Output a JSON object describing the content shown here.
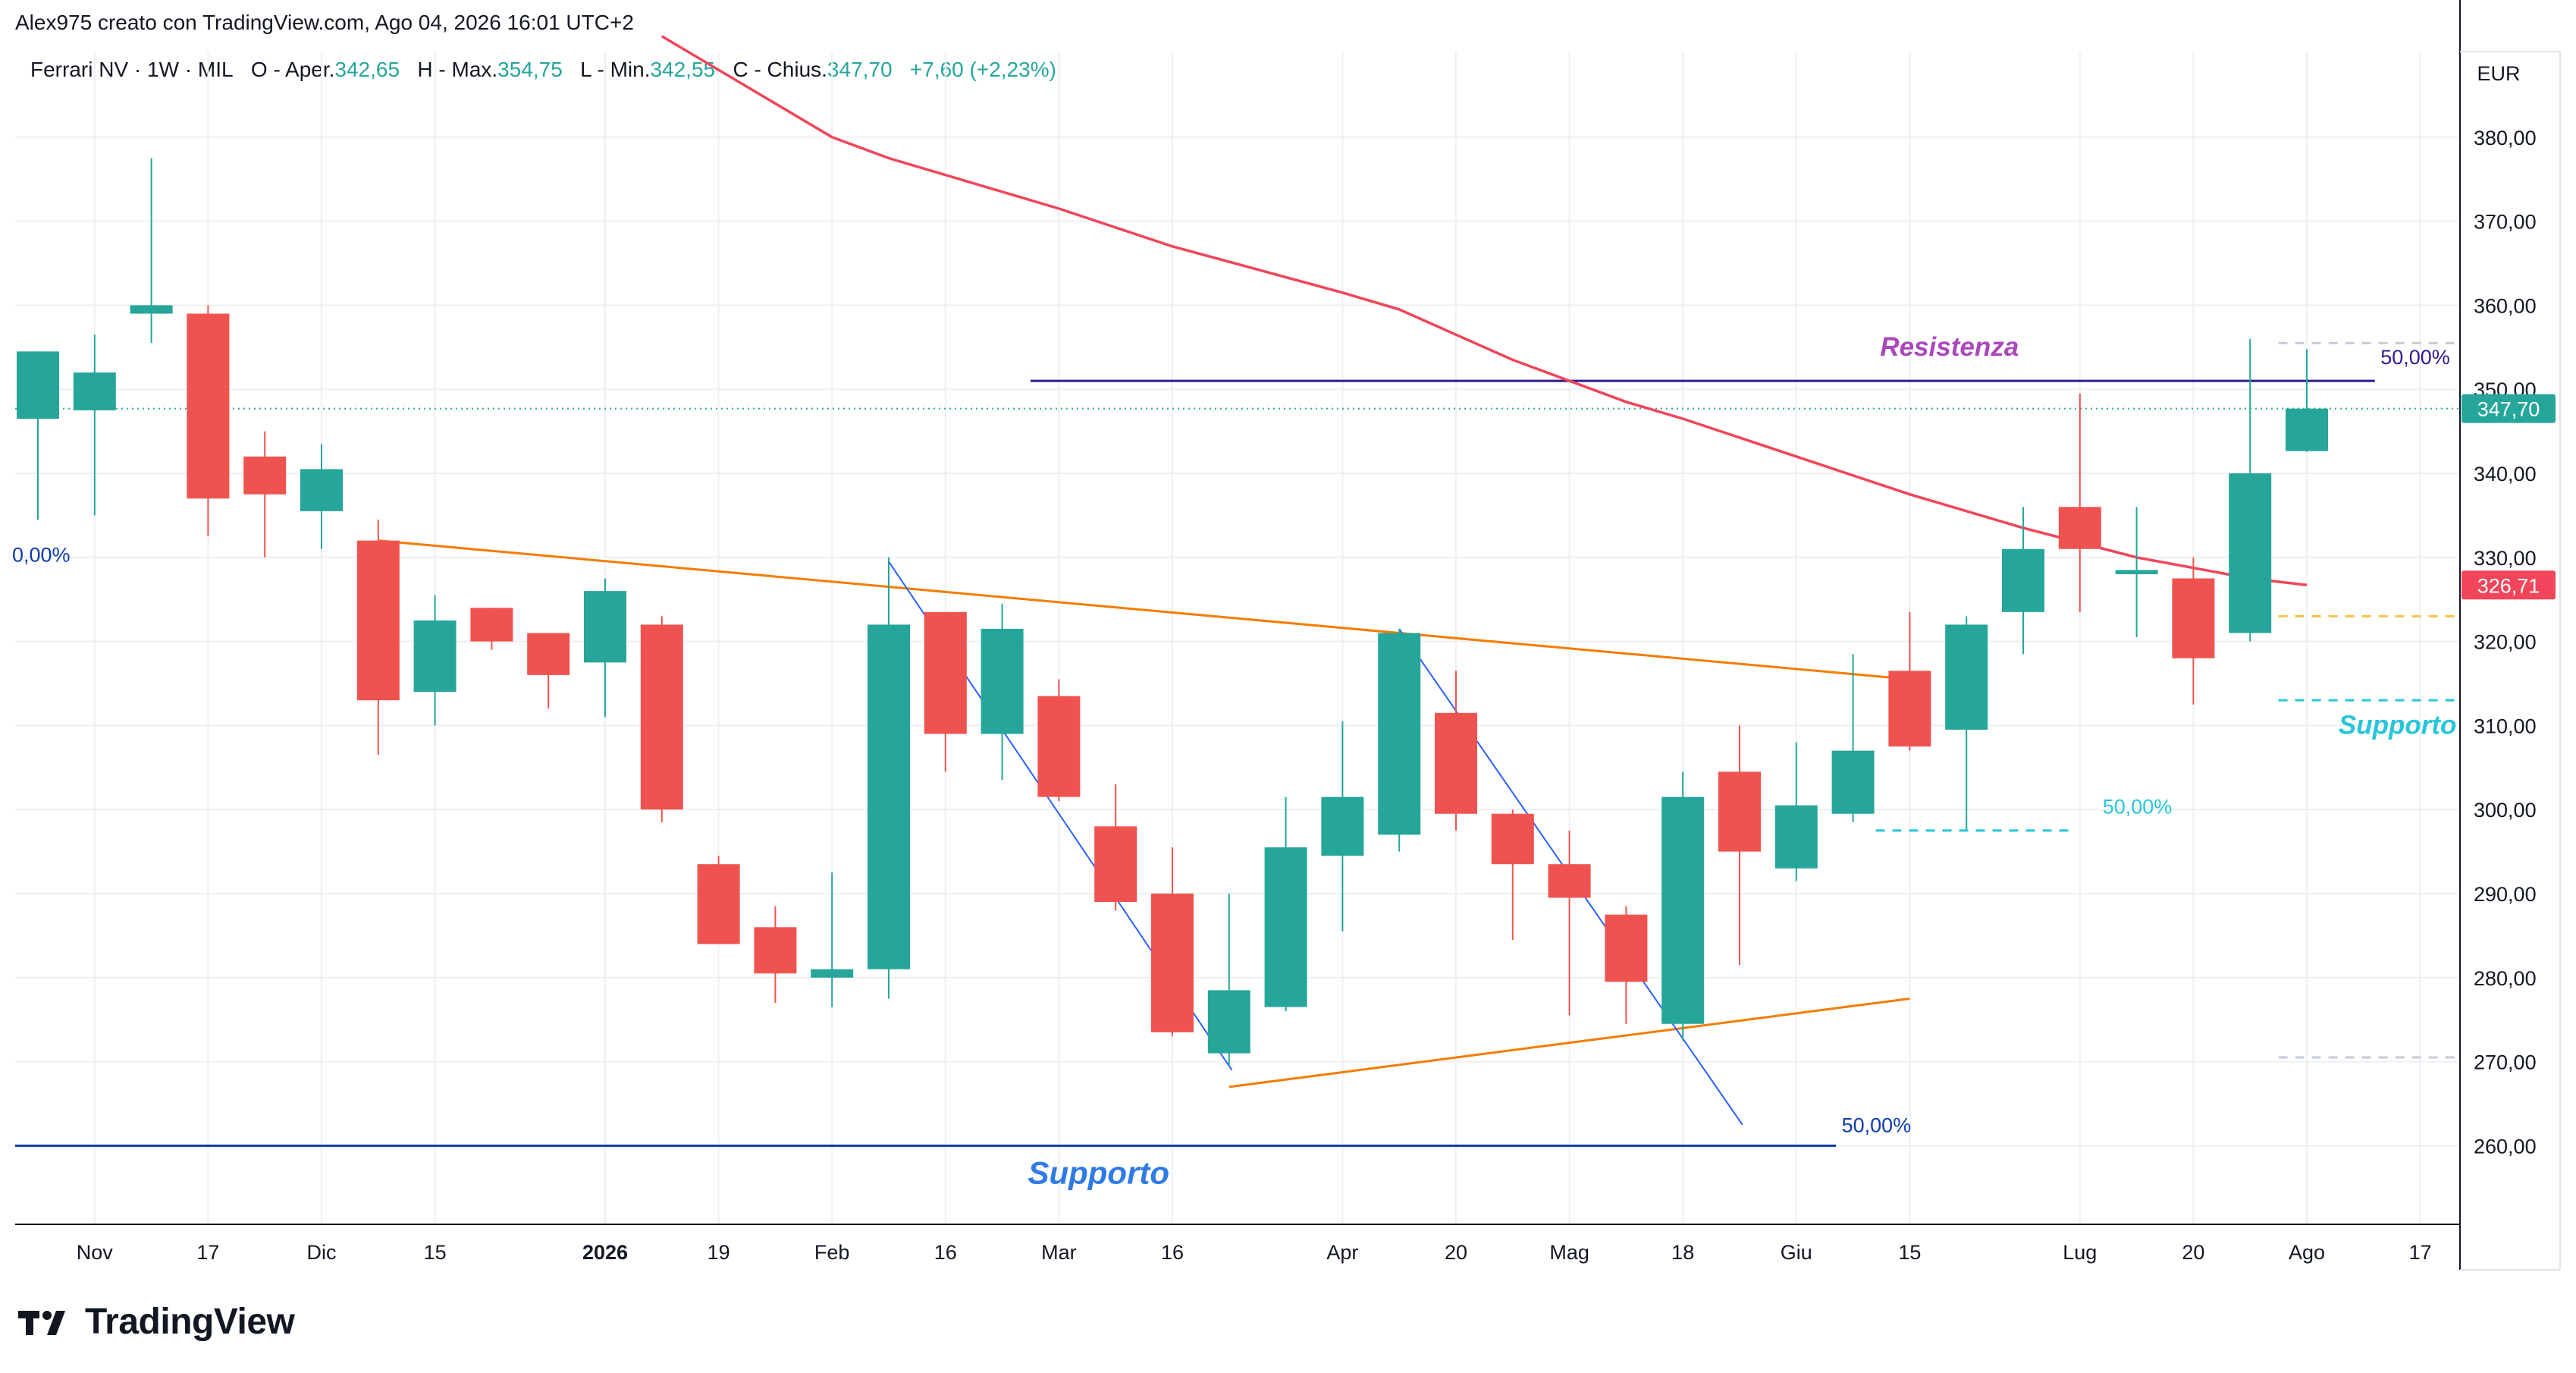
{
  "header": {
    "attribution": "Alex975 creato con TradingView.com, Ago 04, 2026 16:01 UTC+2"
  },
  "legend": {
    "symbol": "Ferrari NV · 1W · MIL",
    "open_label": "O - Aper.",
    "open": "342,65",
    "high_label": "H - Max.",
    "high": "354,75",
    "low_label": "L - Min.",
    "low": "342,55",
    "close_label": "C - Chius.",
    "close": "347,70",
    "change": "+7,60 (+2,23%)"
  },
  "brand": {
    "name": "TradingView",
    "logo": "tradingview-logo-icon"
  },
  "colors": {
    "up": "#26a69a",
    "down": "#ef5350",
    "ma": "#f0455a",
    "trend": "#f57c00",
    "channel": "#2962ff",
    "resistance": "#311b92",
    "support": "#0d3dab",
    "support_label": "#2f7ae5",
    "support2": "#26c6da",
    "grid": "#edf0f3",
    "resistance_label": "#ab47bc",
    "yellow_dash": "#f6c343"
  },
  "chart_data": {
    "type": "candlestick",
    "currency": "EUR",
    "ylim": [
      250,
      390
    ],
    "y_ticks": [
      "260,00",
      "270,00",
      "280,00",
      "290,00",
      "300,00",
      "310,00",
      "320,00",
      "330,00",
      "340,00",
      "350,00",
      "360,00",
      "370,00",
      "380,00"
    ],
    "x_ticks": [
      {
        "label": "Nov",
        "i": 1
      },
      {
        "label": "17",
        "i": 3
      },
      {
        "label": "Dic",
        "i": 5
      },
      {
        "label": "15",
        "i": 7
      },
      {
        "label": "2026",
        "i": 10,
        "bold": true
      },
      {
        "label": "19",
        "i": 12
      },
      {
        "label": "Feb",
        "i": 14
      },
      {
        "label": "16",
        "i": 16
      },
      {
        "label": "Mar",
        "i": 18
      },
      {
        "label": "16",
        "i": 20
      },
      {
        "label": "Apr",
        "i": 23
      },
      {
        "label": "20",
        "i": 25
      },
      {
        "label": "Mag",
        "i": 27
      },
      {
        "label": "18",
        "i": 29
      },
      {
        "label": "Giu",
        "i": 31
      },
      {
        "label": "15",
        "i": 33
      },
      {
        "label": "Lug",
        "i": 36
      },
      {
        "label": "20",
        "i": 38
      },
      {
        "label": "Ago",
        "i": 40
      },
      {
        "label": "17",
        "i": 42
      }
    ],
    "candles": [
      {
        "o": 346.5,
        "h": 354.5,
        "l": 334.5,
        "c": 354.5
      },
      {
        "o": 347.5,
        "h": 356.5,
        "l": 335.0,
        "c": 352.0
      },
      {
        "o": 359.0,
        "h": 377.5,
        "l": 355.5,
        "c": 360.0
      },
      {
        "o": 359.0,
        "h": 360.0,
        "l": 332.5,
        "c": 337.0
      },
      {
        "o": 342.0,
        "h": 345.0,
        "l": 330.0,
        "c": 337.5
      },
      {
        "o": 335.5,
        "h": 343.5,
        "l": 331.0,
        "c": 340.5
      },
      {
        "o": 332.0,
        "h": 334.5,
        "l": 306.5,
        "c": 313.0
      },
      {
        "o": 314.0,
        "h": 325.5,
        "l": 310.0,
        "c": 322.5
      },
      {
        "o": 324.0,
        "h": 324.0,
        "l": 319.0,
        "c": 320.0
      },
      {
        "o": 321.0,
        "h": 321.0,
        "l": 312.0,
        "c": 316.0
      },
      {
        "o": 317.5,
        "h": 327.5,
        "l": 311.0,
        "c": 326.0
      },
      {
        "o": 322.0,
        "h": 323.0,
        "l": 298.5,
        "c": 300.0
      },
      {
        "o": 293.5,
        "h": 294.5,
        "l": 284.0,
        "c": 284.0
      },
      {
        "o": 286.0,
        "h": 288.5,
        "l": 277.0,
        "c": 280.5
      },
      {
        "o": 280.0,
        "h": 292.5,
        "l": 276.5,
        "c": 281.0
      },
      {
        "o": 281.0,
        "h": 330.0,
        "l": 277.5,
        "c": 322.0
      },
      {
        "o": 323.5,
        "h": 323.5,
        "l": 304.5,
        "c": 309.0
      },
      {
        "o": 309.0,
        "h": 324.5,
        "l": 303.5,
        "c": 321.5
      },
      {
        "o": 313.5,
        "h": 315.5,
        "l": 301.0,
        "c": 301.5
      },
      {
        "o": 298.0,
        "h": 303.0,
        "l": 288.0,
        "c": 289.0
      },
      {
        "o": 290.0,
        "h": 295.5,
        "l": 273.0,
        "c": 273.5
      },
      {
        "o": 271.0,
        "h": 290.0,
        "l": 269.5,
        "c": 278.5
      },
      {
        "o": 276.5,
        "h": 301.5,
        "l": 276.0,
        "c": 295.5
      },
      {
        "o": 294.5,
        "h": 310.5,
        "l": 285.5,
        "c": 301.5
      },
      {
        "o": 297.0,
        "h": 321.5,
        "l": 295.0,
        "c": 321.0
      },
      {
        "o": 311.5,
        "h": 316.5,
        "l": 297.5,
        "c": 299.5
      },
      {
        "o": 299.5,
        "h": 300.0,
        "l": 284.5,
        "c": 293.5
      },
      {
        "o": 293.5,
        "h": 297.5,
        "l": 275.5,
        "c": 289.5
      },
      {
        "o": 287.5,
        "h": 288.5,
        "l": 274.5,
        "c": 279.5
      },
      {
        "o": 274.5,
        "h": 304.5,
        "l": 272.5,
        "c": 301.5
      },
      {
        "o": 304.5,
        "h": 310.0,
        "l": 281.5,
        "c": 295.0
      },
      {
        "o": 293.0,
        "h": 308.0,
        "l": 291.5,
        "c": 300.5
      },
      {
        "o": 299.5,
        "h": 318.5,
        "l": 298.5,
        "c": 307.0
      },
      {
        "o": 316.5,
        "h": 323.5,
        "l": 307.0,
        "c": 307.5
      },
      {
        "o": 309.5,
        "h": 323.0,
        "l": 297.5,
        "c": 322.0
      },
      {
        "o": 323.5,
        "h": 336.0,
        "l": 318.5,
        "c": 331.0
      },
      {
        "o": 336.0,
        "h": 349.5,
        "l": 323.5,
        "c": 331.0
      },
      {
        "o": 328.0,
        "h": 336.0,
        "l": 320.5,
        "c": 328.5
      },
      {
        "o": 327.5,
        "h": 330.0,
        "l": 312.5,
        "c": 318.0
      },
      {
        "o": 321.0,
        "h": 356.0,
        "l": 320.0,
        "c": 340.0
      },
      {
        "o": 342.65,
        "h": 354.75,
        "l": 342.55,
        "c": 347.7
      }
    ],
    "moving_average": {
      "last_value": "326,71",
      "points": [
        [
          11,
          392.0
        ],
        [
          14,
          380.0
        ],
        [
          15,
          377.5
        ],
        [
          18,
          371.5
        ],
        [
          20,
          367.0
        ],
        [
          23,
          361.5
        ],
        [
          24,
          359.5
        ],
        [
          25,
          356.5
        ],
        [
          26,
          353.5
        ],
        [
          28,
          348.5
        ],
        [
          29,
          346.5
        ],
        [
          31,
          342.0
        ],
        [
          33,
          337.5
        ],
        [
          35,
          333.5
        ],
        [
          37,
          330.0
        ],
        [
          39,
          327.5
        ],
        [
          40,
          326.71
        ]
      ]
    },
    "current_price": "347,70",
    "annotations": {
      "resistance_label": "Resistenza",
      "resistance_pct": "50,00%",
      "support_label": "Supporto",
      "support_pct": "50,00%",
      "support2_label": "Supporto",
      "mid_pct": "50,00%",
      "left_pct": "0,00%"
    }
  }
}
